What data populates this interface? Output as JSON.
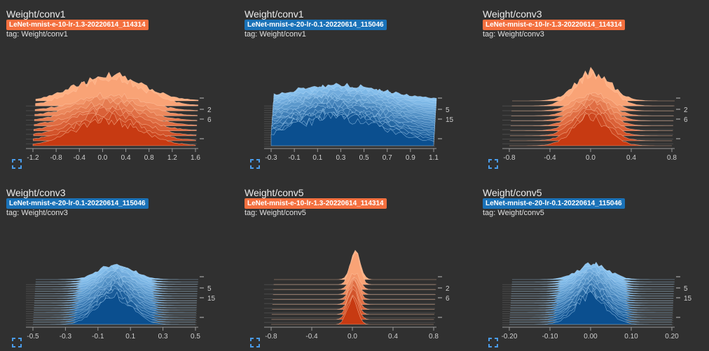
{
  "colors": {
    "orange": "#f4703f",
    "blue": "#1a72b8",
    "background": "#303030"
  },
  "cards": [
    {
      "title": "Weight/conv1",
      "run": "LeNet-mnist-e-10-lr-1.3-20220614_114314",
      "run_color": "#f4703f",
      "tag": "tag: Weight/conv1",
      "expand_icon": "fullscreen-icon",
      "chart_data": {
        "type": "histogram-ridge",
        "x_ticks": [
          "-1.2",
          "-0.8",
          "-0.4",
          "0.0",
          "0.4",
          "0.8",
          "1.2",
          "1.6"
        ],
        "xlim": [
          -1.35,
          1.6
        ],
        "step_ticks": [
          "2",
          "6"
        ],
        "steps": 10,
        "distribution": {
          "center": 0.0,
          "spread": 0.6,
          "peak_steps": 2
        }
      }
    },
    {
      "title": "Weight/conv1",
      "run": "LeNet-mnist-e-20-lr-0.1-20220614_115046",
      "run_color": "#1a72b8",
      "tag": "tag: Weight/conv1",
      "expand_icon": "fullscreen-icon",
      "chart_data": {
        "type": "histogram-ridge",
        "x_ticks": [
          "-0.3",
          "-0.1",
          "0.1",
          "0.3",
          "0.5",
          "0.7",
          "0.9",
          "1.1"
        ],
        "xlim": [
          -0.32,
          1.12
        ],
        "step_ticks": [
          "5",
          "15"
        ],
        "steps": 20,
        "distribution": {
          "center": 0.25,
          "spread": 0.45,
          "peak_steps": 0
        }
      }
    },
    {
      "title": "Weight/conv3",
      "run": "LeNet-mnist-e-10-lr-1.3-20220614_114314",
      "run_color": "#f4703f",
      "tag": "tag: Weight/conv3",
      "expand_icon": "fullscreen-icon",
      "chart_data": {
        "type": "histogram-ridge",
        "x_ticks": [
          "-0.8",
          "-0.4",
          "0.0",
          "0.4",
          "0.8"
        ],
        "xlim": [
          -0.85,
          0.85
        ],
        "step_ticks": [
          "2",
          "6"
        ],
        "steps": 10,
        "distribution": {
          "center": 0.0,
          "spread": 0.18,
          "peak_steps": 2
        }
      }
    },
    {
      "title": "Weight/conv3",
      "run": "LeNet-mnist-e-20-lr-0.1-20220614_115046",
      "run_color": "#1a72b8",
      "tag": "tag: Weight/conv3",
      "expand_icon": "fullscreen-icon",
      "chart_data": {
        "type": "histogram-ridge",
        "x_ticks": [
          "-0.5",
          "-0.3",
          "-0.1",
          "0.1",
          "0.3",
          "0.5"
        ],
        "xlim": [
          -0.52,
          0.52
        ],
        "step_ticks": [
          "5",
          "15"
        ],
        "steps": 20,
        "distribution": {
          "center": 0.0,
          "spread": 0.11,
          "peak_steps": 0
        }
      }
    },
    {
      "title": "Weight/conv5",
      "run": "LeNet-mnist-e-10-lr-1.3-20220614_114314",
      "run_color": "#f4703f",
      "tag": "tag: Weight/conv5",
      "expand_icon": "fullscreen-icon",
      "chart_data": {
        "type": "histogram-ridge",
        "x_ticks": [
          "-0.8",
          "-0.4",
          "0.0",
          "0.4",
          "0.8"
        ],
        "xlim": [
          -0.85,
          0.85
        ],
        "step_ticks": [
          "2",
          "6"
        ],
        "steps": 10,
        "distribution": {
          "center": 0.0,
          "spread": 0.05,
          "peak_steps": 2
        }
      }
    },
    {
      "title": "Weight/conv5",
      "run": "LeNet-mnist-e-20-lr-0.1-20220614_115046",
      "run_color": "#1a72b8",
      "tag": "tag: Weight/conv5",
      "expand_icon": "fullscreen-icon",
      "chart_data": {
        "type": "histogram-ridge",
        "x_ticks": [
          "-0.20",
          "-0.10",
          "0.00",
          "0.10",
          "0.20"
        ],
        "xlim": [
          -0.22,
          0.22
        ],
        "step_ticks": [
          "5",
          "15"
        ],
        "steps": 20,
        "distribution": {
          "center": 0.0,
          "spread": 0.042,
          "peak_steps": 0
        }
      }
    }
  ]
}
